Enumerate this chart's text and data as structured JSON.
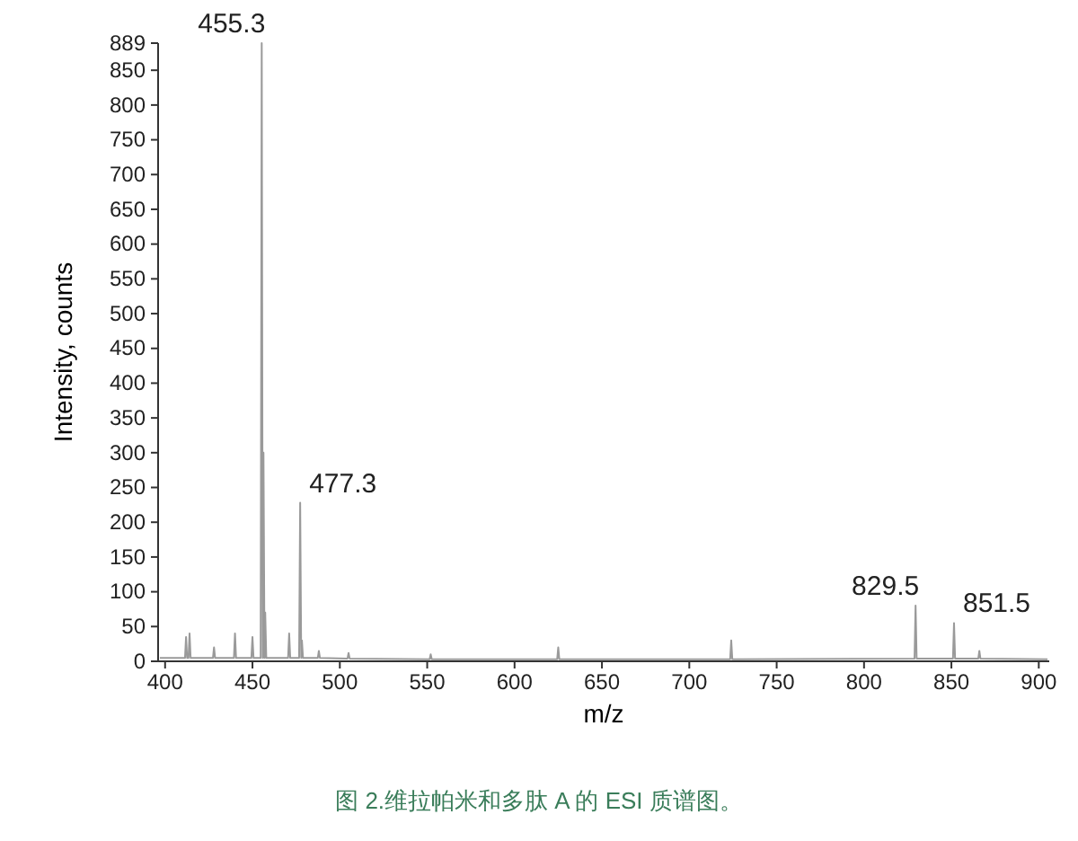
{
  "chart_data": {
    "type": "line",
    "xlabel": "m/z",
    "ylabel": "Intensity, counts",
    "xlim": [
      396,
      906
    ],
    "ylim": [
      0,
      889
    ],
    "xticks": [
      400,
      450,
      500,
      550,
      600,
      650,
      700,
      750,
      800,
      850,
      900
    ],
    "yticks": [
      0,
      50,
      100,
      150,
      200,
      250,
      300,
      350,
      400,
      450,
      500,
      550,
      600,
      650,
      700,
      750,
      800,
      850,
      889
    ],
    "series": [
      {
        "color": "#9a9a9a",
        "x": [
          397,
          411.4,
          412,
          412.6,
          413.4,
          414,
          414.6,
          427.4,
          428,
          428.6,
          439.4,
          440,
          440.6,
          449.4,
          450,
          450.6,
          454.7,
          455.3,
          455.9,
          456.3,
          456.9,
          457.3,
          457.9,
          470.4,
          471,
          471.6,
          476.7,
          477.3,
          477.9,
          478.3,
          478.9,
          487.4,
          488,
          488.6,
          504.4,
          505,
          505.6,
          551.4,
          552,
          552.6,
          624.4,
          625,
          625.6,
          723.4,
          724,
          724.6,
          828.9,
          829.5,
          830.1,
          850.9,
          851.5,
          852.1,
          865.4,
          866,
          866.6,
          905
        ],
        "values": [
          5,
          5,
          35,
          5,
          5,
          40,
          5,
          5,
          20,
          5,
          5,
          40,
          5,
          5,
          35,
          5,
          5,
          889,
          5,
          300,
          5,
          70,
          5,
          5,
          40,
          5,
          5,
          228,
          5,
          30,
          5,
          5,
          15,
          5,
          4,
          12,
          4,
          3,
          10,
          3,
          3,
          20,
          3,
          3,
          30,
          3,
          4,
          80,
          4,
          4,
          55,
          4,
          4,
          15,
          4,
          3
        ]
      }
    ],
    "annotations": [
      {
        "text": "455.3",
        "x": 455.3,
        "y": 889
      },
      {
        "text": "477.3",
        "x": 477.3,
        "y": 228
      },
      {
        "text": "829.5",
        "x": 829.5,
        "y": 80
      },
      {
        "text": "851.5",
        "x": 851.5,
        "y": 55
      },
      "图 2.维拉帕米和多肽 A 的 ESI 质谱图。"
    ],
    "grid": false,
    "marker": "none",
    "line_style": "solid"
  }
}
